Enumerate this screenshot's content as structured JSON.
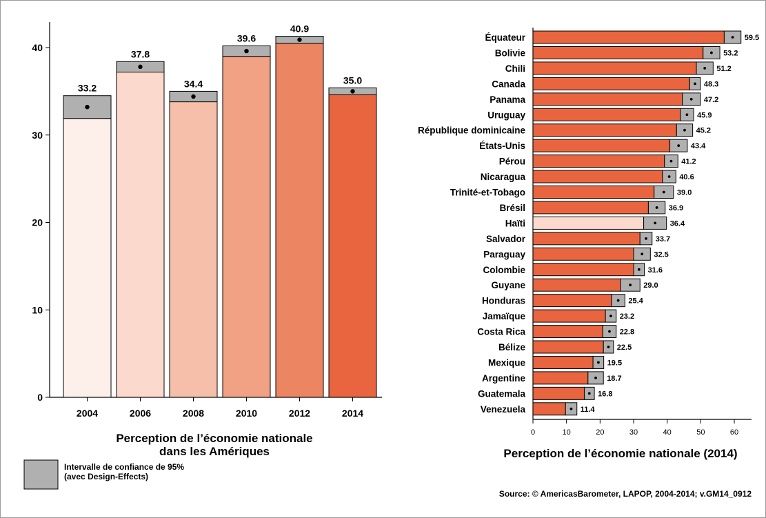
{
  "chart_data": [
    {
      "type": "bar",
      "orientation": "vertical",
      "title": [
        "Perception de l’économie nationale",
        "dans les Amériques"
      ],
      "categories": [
        "2004",
        "2006",
        "2008",
        "2010",
        "2012",
        "2014"
      ],
      "values": [
        33.2,
        37.8,
        34.4,
        39.6,
        40.9,
        35.0
      ],
      "value_labels": [
        "33.2",
        "37.8",
        "34.4",
        "39.6",
        "40.9",
        "35.0"
      ],
      "ci_low": [
        31.9,
        37.2,
        33.8,
        39.0,
        40.5,
        34.6
      ],
      "ci_high": [
        34.5,
        38.4,
        35.0,
        40.2,
        41.3,
        35.4
      ],
      "bar_colors": [
        "#fdefe9",
        "#fbd9cc",
        "#f5bfa9",
        "#f1a285",
        "#ec8561",
        "#e8653f"
      ],
      "ylim": [
        0,
        44
      ],
      "yticks": [
        "0",
        "10",
        "20",
        "30",
        "40"
      ],
      "grid": false
    },
    {
      "type": "bar",
      "orientation": "horizontal",
      "title": "Perception de l’économie nationale (2014)",
      "categories": [
        "Équateur",
        "Bolivie",
        "Chili",
        "Canada",
        "Panama",
        "Uruguay",
        "République dominicaine",
        "États-Unis",
        "Pérou",
        "Nicaragua",
        "Trinité-et-Tobago",
        "Brésil",
        "Haïti",
        "Salvador",
        "Paraguay",
        "Colombie",
        "Guyane",
        "Honduras",
        "Jamaïque",
        "Costa Rica",
        "Bélize",
        "Mexique",
        "Argentine",
        "Guatemala",
        "Venezuela"
      ],
      "values": [
        59.5,
        53.2,
        51.2,
        48.3,
        47.2,
        45.9,
        45.2,
        43.4,
        41.2,
        40.6,
        39.0,
        36.9,
        36.4,
        33.7,
        32.5,
        31.6,
        29.0,
        25.4,
        23.2,
        22.8,
        22.5,
        19.5,
        18.7,
        16.8,
        11.4
      ],
      "value_labels": [
        "59.5",
        "53.2",
        "51.2",
        "48.3",
        "47.2",
        "45.9",
        "45.2",
        "43.4",
        "41.2",
        "40.6",
        "39.0",
        "36.9",
        "36.4",
        "33.7",
        "32.5",
        "31.6",
        "29.0",
        "25.4",
        "23.2",
        "22.8",
        "22.5",
        "19.5",
        "18.7",
        "16.8",
        "11.4"
      ],
      "ci_halfwidth": [
        2.5,
        2.5,
        2.5,
        1.6,
        2.7,
        2.0,
        2.4,
        2.6,
        2.0,
        2.0,
        2.9,
        2.5,
        3.4,
        1.8,
        2.5,
        1.6,
        2.9,
        2.0,
        1.6,
        2.0,
        1.5,
        1.6,
        2.3,
        1.5,
        1.7
      ],
      "highlight": "Haïti",
      "bar_color": "#e8653f",
      "highlight_color": "#fbd9cc",
      "xlim": [
        0,
        65
      ],
      "xticks": [
        "0",
        "10",
        "20",
        "30",
        "40",
        "50",
        "60"
      ],
      "grid": false
    }
  ],
  "legend": {
    "ci_label_line1": "Intervalle de confiance de 95%",
    "ci_label_line2": "(avec Design-Effects)",
    "ci_color": "#b0b0b0"
  },
  "source": "Source: © AmericasBarometer, LAPOP, 2004-2014; v.GM14_0912"
}
